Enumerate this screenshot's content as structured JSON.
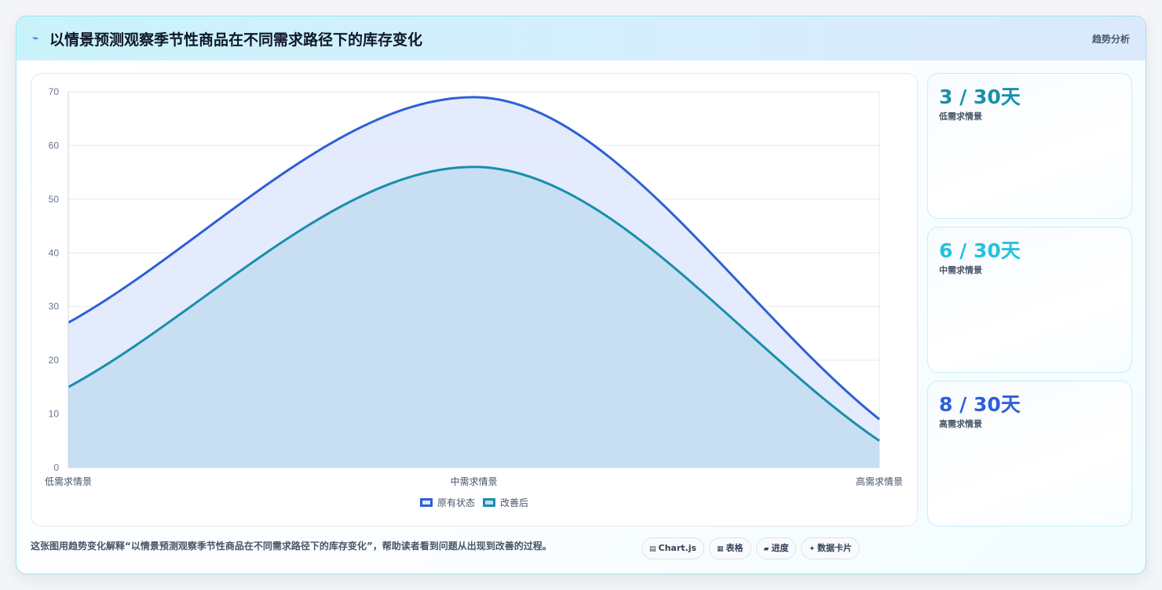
{
  "header": {
    "title": "以情景预测观察季节性商品在不同需求路径下的库存变化",
    "tag": "趋势分析",
    "icon": "trend-icon"
  },
  "chart_data": {
    "type": "area",
    "categories": [
      "低需求情景",
      "中需求情景",
      "高需求情景"
    ],
    "series": [
      {
        "name": "原有状态",
        "values": [
          27,
          69,
          9
        ],
        "color": "#2d5fd8",
        "fill": "#dfe8fb"
      },
      {
        "name": "改善后",
        "values": [
          15,
          56,
          5
        ],
        "color": "#1a8fab",
        "fill": "#c3dcf1"
      }
    ],
    "ylim": [
      0,
      70
    ],
    "yticks": [
      0,
      10,
      20,
      30,
      40,
      50,
      60,
      70
    ],
    "grid": true,
    "legend_position": "bottom",
    "smooth": true
  },
  "stats": [
    {
      "value": "3 / 30天",
      "label": "低需求情景",
      "color": "#1a8fab"
    },
    {
      "value": "6 / 30天",
      "label": "中需求情景",
      "color": "#22c3dd"
    },
    {
      "value": "8 / 30天",
      "label": "高需求情景",
      "color": "#2d5fd8"
    }
  ],
  "footer": {
    "text": "这张图用趋势变化解释“以情景预测观察季节性商品在不同需求路径下的库存变化”，帮助读者看到问题从出现到改善的过程。",
    "chips": [
      {
        "icon": "▤",
        "label": "Chart.js"
      },
      {
        "icon": "▦",
        "label": "表格"
      },
      {
        "icon": "▰",
        "label": "进度"
      },
      {
        "icon": "✦",
        "label": "数据卡片"
      }
    ]
  }
}
